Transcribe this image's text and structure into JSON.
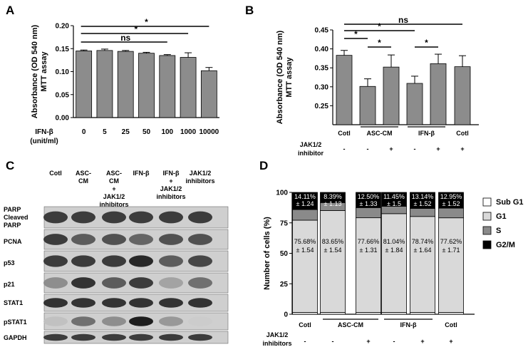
{
  "panel_labels": [
    "A",
    "B",
    "C",
    "D"
  ],
  "chart_data": [
    {
      "panel": "A",
      "type": "bar",
      "ylabel": "Absorbance (OD 540 nm)\nMTT assay",
      "ylabel_lines": [
        "Absorbance (OD 540 nm)",
        "MTT assay"
      ],
      "ylim": [
        0,
        0.2
      ],
      "yticks": [
        "0.00",
        "0.05",
        "0.10",
        "0.15",
        "0.20"
      ],
      "xlabel_lines": [
        "IFN-β",
        "(unit/ml)"
      ],
      "categories": [
        "0",
        "5",
        "25",
        "50",
        "100",
        "1000",
        "10000"
      ],
      "values": [
        0.145,
        0.146,
        0.144,
        0.14,
        0.135,
        0.131,
        0.102
      ],
      "errors": [
        0.002,
        0.003,
        0.002,
        0.002,
        0.002,
        0.01,
        0.007
      ],
      "significance": [
        {
          "from": 0,
          "to": 6,
          "label": "*"
        },
        {
          "from": 0,
          "to": 5,
          "label": "*"
        },
        {
          "from": 0,
          "to": 4,
          "label": "ns"
        }
      ],
      "bar_color": "#8c8c8c"
    },
    {
      "panel": "B",
      "type": "bar",
      "ylabel_lines": [
        "Absorbance (OD 540 nm)",
        "MTT assay"
      ],
      "ylim": [
        0.2,
        0.45
      ],
      "yticks": [
        "0.25",
        "0.30",
        "0.35",
        "0.40",
        "0.45"
      ],
      "categories": [
        "Cotl",
        "ASC-CM",
        "ASC-CM",
        "IFN-β",
        "IFN-β",
        "Cotl"
      ],
      "group_labels": [
        "Cotl",
        "ASC-CM",
        "IFN-β",
        "Cotl"
      ],
      "inhibitor_label_lines": [
        "JAK1/2",
        "inhibitor"
      ],
      "inhibitor": [
        "-",
        "-",
        "+",
        "-",
        "+",
        "+"
      ],
      "values": [
        0.383,
        0.301,
        0.352,
        0.309,
        0.361,
        0.353
      ],
      "errors": [
        0.013,
        0.02,
        0.032,
        0.019,
        0.025,
        0.029
      ],
      "significance": [
        {
          "from": 0,
          "to": 5,
          "label": "ns"
        },
        {
          "from": 0,
          "to": 3,
          "label": "*"
        },
        {
          "from": 0,
          "to": 1,
          "label": "*"
        },
        {
          "from": 1,
          "to": 2,
          "label": "*"
        },
        {
          "from": 3,
          "to": 4,
          "label": "*"
        }
      ],
      "bar_color": "#8c8c8c"
    },
    {
      "panel": "D",
      "type": "bar",
      "stacked": true,
      "ylabel": "Number of cells (%)",
      "ylim": [
        0,
        100
      ],
      "yticks": [
        "0",
        "25",
        "50",
        "75",
        "100"
      ],
      "group_labels": [
        "Cotl",
        "ASC-CM",
        "IFN-β",
        "Cotl"
      ],
      "inhibitor_label_lines": [
        "JAK1/2",
        "inhibitors"
      ],
      "inhibitor": [
        "-",
        "-",
        "+",
        "-",
        "+",
        "+"
      ],
      "legend": [
        "Sub G1",
        "G1",
        "S",
        "G2/M"
      ],
      "legend_position": "right",
      "series": [
        {
          "name": "Sub G1",
          "color": "#ffffff",
          "values": [
            1.5,
            1.5,
            1.5,
            1.5,
            1.5,
            1.5
          ]
        },
        {
          "name": "G1",
          "color": "#d9d9d9",
          "values": [
            75.68,
            83.65,
            77.66,
            81.04,
            78.74,
            77.62
          ]
        },
        {
          "name": "S",
          "color": "#8a8a8a",
          "values": [
            8.71,
            6.46,
            8.34,
            6.01,
            6.62,
            7.93
          ]
        },
        {
          "name": "G2/M",
          "color": "#000000",
          "values": [
            14.11,
            8.39,
            12.5,
            11.45,
            13.14,
            12.95
          ]
        }
      ],
      "g1_labels": [
        [
          "75.68%",
          "± 1.54"
        ],
        [
          "83.65%",
          "± 1.54"
        ],
        [
          "77.66%",
          "± 1.31"
        ],
        [
          "81.04%",
          "± 1.84"
        ],
        [
          "78.74%",
          "± 1.64"
        ],
        [
          "77.62%",
          "± 1.71"
        ]
      ],
      "g2m_labels": [
        [
          "14.11%",
          "± 1.24"
        ],
        [
          "8.39%",
          "± 1.13"
        ],
        [
          "12.50%",
          "± 1.33"
        ],
        [
          "11.45%",
          "± 1.5"
        ],
        [
          "13.14%",
          "± 1.52"
        ],
        [
          "12.95%",
          "± 1.52"
        ]
      ]
    }
  ],
  "western_blot": {
    "column_headers": [
      [
        "Cotl"
      ],
      [
        "ASC-",
        "CM"
      ],
      [
        "ASC-",
        "CM",
        "+",
        "JAK1/2",
        "inhibitors"
      ],
      [
        "IFN-β"
      ],
      [
        "IFN-β",
        "+",
        "JAK1/2",
        "inhibitors"
      ],
      [
        "JAK1/2",
        "inhibitors"
      ]
    ],
    "row_labels": [
      [
        "PARP",
        "Cleaved",
        "PARP"
      ],
      [
        "PCNA"
      ],
      [
        "p53"
      ],
      [
        "p21"
      ],
      [
        "STAT1"
      ],
      [
        "pSTAT1"
      ],
      [
        "GAPDH"
      ]
    ],
    "band_intensity": [
      [
        0.85,
        0.85,
        0.85,
        0.85,
        0.85,
        0.85
      ],
      [
        0.85,
        0.7,
        0.75,
        0.65,
        0.75,
        0.75
      ],
      [
        0.85,
        0.85,
        0.85,
        0.95,
        0.7,
        0.8
      ],
      [
        0.45,
        0.9,
        0.7,
        0.85,
        0.35,
        0.6
      ],
      [
        0.9,
        0.9,
        0.9,
        0.9,
        0.9,
        0.9
      ],
      [
        0.2,
        0.6,
        0.45,
        1.0,
        0.4,
        0.15
      ],
      [
        0.85,
        0.85,
        0.85,
        0.85,
        0.85,
        0.85
      ]
    ]
  }
}
